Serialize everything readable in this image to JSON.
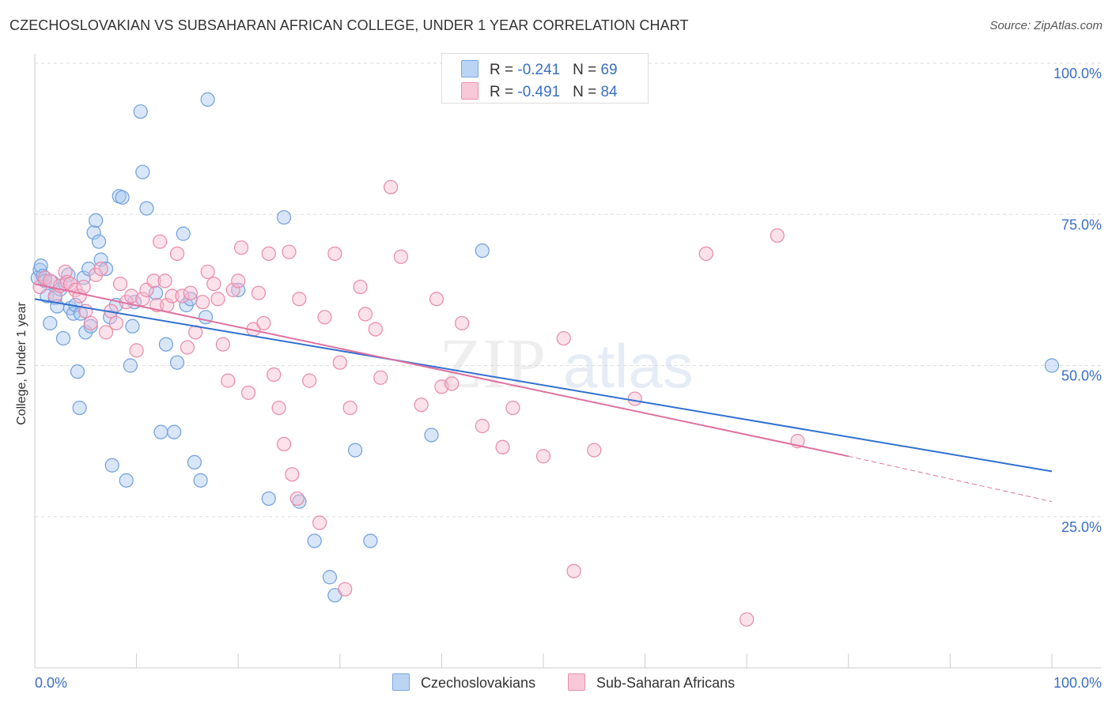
{
  "header": {
    "title": "CZECHOSLOVAKIAN VS SUBSAHARAN AFRICAN COLLEGE, UNDER 1 YEAR CORRELATION CHART",
    "source": "Source: ZipAtlas.com"
  },
  "watermark": {
    "zip": "ZIP",
    "atlas": "atlas"
  },
  "chart_data": {
    "type": "scatter",
    "title": "CZECHOSLOVAKIAN VS SUBSAHARAN AFRICAN COLLEGE, UNDER 1 YEAR CORRELATION CHART",
    "ylabel": "College, Under 1 year",
    "xlabel": "",
    "xlim": [
      0,
      100
    ],
    "ylim": [
      0,
      100
    ],
    "x_tick_labels": [
      "0.0%",
      "100.0%"
    ],
    "y_tick_labels": [
      "25.0%",
      "50.0%",
      "75.0%",
      "100.0%"
    ],
    "y_ticks": [
      25,
      50,
      75,
      100
    ],
    "grid": "horizontal dashed",
    "legend_placement": "top-center and bottom",
    "series": [
      {
        "name": "Czechoslovakians",
        "color": "#a8c8f0",
        "stroke": "#6f9fdc",
        "line_color": "#3070d0",
        "R": "-0.241",
        "N": "69",
        "trend": {
          "x": [
            0,
            100
          ],
          "y": [
            61.0,
            32.5
          ]
        },
        "points": [
          [
            0.3,
            64.5
          ],
          [
            0.5,
            65.8
          ],
          [
            0.6,
            66.5
          ],
          [
            0.8,
            64.8
          ],
          [
            1.0,
            64.0
          ],
          [
            1.2,
            61.5
          ],
          [
            1.5,
            57.0
          ],
          [
            1.7,
            63.8
          ],
          [
            2.0,
            61.2
          ],
          [
            2.2,
            59.8
          ],
          [
            2.5,
            62.6
          ],
          [
            2.8,
            54.5
          ],
          [
            3.0,
            63.5
          ],
          [
            3.3,
            65.0
          ],
          [
            3.5,
            59.5
          ],
          [
            3.8,
            58.6
          ],
          [
            4.0,
            60.0
          ],
          [
            4.2,
            49.0
          ],
          [
            4.4,
            43.0
          ],
          [
            4.5,
            58.6
          ],
          [
            4.8,
            64.5
          ],
          [
            5.0,
            55.5
          ],
          [
            5.3,
            66.0
          ],
          [
            5.5,
            56.5
          ],
          [
            5.8,
            72.0
          ],
          [
            6.0,
            74.0
          ],
          [
            6.3,
            70.5
          ],
          [
            6.5,
            67.5
          ],
          [
            7.0,
            66.0
          ],
          [
            7.4,
            58.0
          ],
          [
            7.6,
            33.5
          ],
          [
            8.0,
            60.0
          ],
          [
            8.3,
            78.0
          ],
          [
            8.6,
            77.8
          ],
          [
            9.0,
            31.0
          ],
          [
            9.4,
            50.0
          ],
          [
            9.6,
            56.5
          ],
          [
            9.8,
            60.5
          ],
          [
            10.4,
            92.0
          ],
          [
            10.6,
            82.0
          ],
          [
            11.0,
            76.0
          ],
          [
            11.9,
            62.0
          ],
          [
            12.4,
            39.0
          ],
          [
            12.9,
            53.5
          ],
          [
            13.7,
            39.0
          ],
          [
            14.0,
            50.5
          ],
          [
            14.6,
            71.8
          ],
          [
            14.9,
            60.0
          ],
          [
            15.3,
            61.0
          ],
          [
            15.7,
            34.0
          ],
          [
            16.3,
            31.0
          ],
          [
            16.8,
            58.0
          ],
          [
            17.0,
            94.0
          ],
          [
            20.0,
            62.5
          ],
          [
            23.0,
            28.0
          ],
          [
            24.5,
            74.5
          ],
          [
            26.0,
            27.5
          ],
          [
            27.5,
            21.0
          ],
          [
            29.0,
            15.0
          ],
          [
            29.5,
            12.0
          ],
          [
            31.5,
            36.0
          ],
          [
            33.0,
            21.0
          ],
          [
            39.0,
            38.5
          ],
          [
            44.0,
            69.0
          ],
          [
            100.0,
            50.0
          ]
        ]
      },
      {
        "name": "Sub-Saharan Africans",
        "color": "#f6bcd0",
        "stroke": "#e889a8",
        "line_color": "#e070a0",
        "R": "-0.491",
        "N": "84",
        "trend": {
          "x": [
            0,
            80
          ],
          "y": [
            63.5,
            35.0
          ]
        },
        "trend_dashed": {
          "x": [
            80,
            100
          ],
          "y": [
            35.0,
            27.5
          ]
        },
        "points": [
          [
            0.5,
            63.0
          ],
          [
            1.0,
            64.5
          ],
          [
            1.5,
            64.0
          ],
          [
            2.0,
            61.5
          ],
          [
            2.5,
            63.2
          ],
          [
            3.0,
            65.5
          ],
          [
            3.2,
            63.8
          ],
          [
            3.5,
            63.5
          ],
          [
            4.0,
            62.5
          ],
          [
            4.4,
            61.5
          ],
          [
            4.8,
            63.0
          ],
          [
            5.0,
            59.0
          ],
          [
            5.5,
            57.0
          ],
          [
            6.0,
            65.0
          ],
          [
            6.5,
            66.0
          ],
          [
            7.0,
            55.5
          ],
          [
            7.5,
            59.0
          ],
          [
            8.0,
            57.0
          ],
          [
            8.4,
            63.5
          ],
          [
            9.0,
            60.5
          ],
          [
            9.5,
            61.5
          ],
          [
            10.0,
            52.5
          ],
          [
            10.6,
            61.0
          ],
          [
            11.0,
            62.5
          ],
          [
            11.7,
            64.0
          ],
          [
            12.0,
            60.0
          ],
          [
            12.3,
            70.5
          ],
          [
            12.8,
            64.0
          ],
          [
            13.0,
            60.0
          ],
          [
            13.5,
            61.5
          ],
          [
            14.0,
            68.5
          ],
          [
            14.5,
            61.5
          ],
          [
            15.0,
            53.0
          ],
          [
            15.3,
            62.0
          ],
          [
            15.8,
            55.5
          ],
          [
            16.5,
            60.5
          ],
          [
            17.0,
            65.5
          ],
          [
            17.6,
            63.5
          ],
          [
            18.0,
            61.0
          ],
          [
            18.5,
            53.5
          ],
          [
            19.0,
            47.5
          ],
          [
            19.5,
            62.5
          ],
          [
            20.0,
            64.0
          ],
          [
            20.3,
            69.5
          ],
          [
            21.0,
            45.5
          ],
          [
            21.5,
            56.0
          ],
          [
            22.0,
            62.0
          ],
          [
            22.5,
            57.0
          ],
          [
            23.0,
            68.5
          ],
          [
            23.5,
            48.5
          ],
          [
            24.0,
            43.0
          ],
          [
            24.5,
            37.0
          ],
          [
            25.0,
            68.8
          ],
          [
            25.3,
            32.0
          ],
          [
            25.8,
            28.0
          ],
          [
            26.0,
            61.0
          ],
          [
            27.0,
            47.5
          ],
          [
            28.0,
            24.0
          ],
          [
            28.5,
            58.0
          ],
          [
            29.5,
            68.5
          ],
          [
            30.0,
            50.5
          ],
          [
            30.5,
            13.0
          ],
          [
            31.0,
            43.0
          ],
          [
            32.0,
            63.0
          ],
          [
            32.5,
            58.5
          ],
          [
            33.5,
            56.0
          ],
          [
            34.0,
            48.0
          ],
          [
            35.0,
            79.5
          ],
          [
            36.0,
            68.0
          ],
          [
            38.0,
            43.5
          ],
          [
            39.5,
            61.0
          ],
          [
            40.0,
            46.5
          ],
          [
            41.0,
            47.0
          ],
          [
            42.0,
            57.0
          ],
          [
            44.0,
            40.0
          ],
          [
            46.0,
            36.5
          ],
          [
            47.0,
            43.0
          ],
          [
            50.0,
            35.0
          ],
          [
            52.0,
            54.5
          ],
          [
            53.0,
            16.0
          ],
          [
            55.0,
            36.0
          ],
          [
            59.0,
            44.5
          ],
          [
            66.0,
            68.5
          ],
          [
            70.0,
            8.0
          ],
          [
            73.0,
            71.5
          ],
          [
            75.0,
            37.5
          ]
        ]
      }
    ]
  }
}
